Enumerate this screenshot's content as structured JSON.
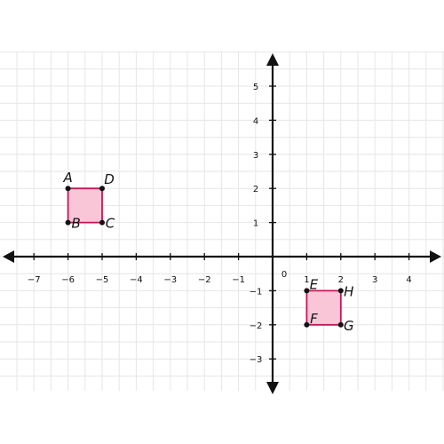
{
  "chart_data": {
    "type": "coordinate-plane",
    "title": "",
    "x_range": [
      -8,
      5
    ],
    "y_range": [
      -4,
      6
    ],
    "x_ticks": [
      -7,
      -6,
      -5,
      -4,
      -3,
      -2,
      -1,
      1,
      2,
      3,
      4
    ],
    "y_ticks": [
      -3,
      -2,
      -1,
      1,
      2,
      3,
      4,
      5
    ],
    "origin_label": "0",
    "grid_step": 0.5,
    "colors": {
      "grid": "#e6e6e6",
      "axis": "#111111",
      "square_fill": "#f9c6d7",
      "square_stroke": "#c2185b",
      "point": "#111111"
    },
    "squares": [
      {
        "name": "ABCD",
        "vertices": [
          {
            "label": "A",
            "x": -6,
            "y": 2,
            "label_pos": "above"
          },
          {
            "label": "D",
            "x": -5,
            "y": 2,
            "label_pos": "above-right"
          },
          {
            "label": "C",
            "x": -5,
            "y": 1,
            "label_pos": "right"
          },
          {
            "label": "B",
            "x": -6,
            "y": 1,
            "label_pos": "right-inside"
          }
        ]
      },
      {
        "name": "EHGF",
        "vertices": [
          {
            "label": "E",
            "x": 1,
            "y": -1,
            "label_pos": "above-inside"
          },
          {
            "label": "H",
            "x": 2,
            "y": -1,
            "label_pos": "right"
          },
          {
            "label": "G",
            "x": 2,
            "y": -2,
            "label_pos": "right"
          },
          {
            "label": "F",
            "x": 1,
            "y": -2,
            "label_pos": "above-inside"
          }
        ]
      }
    ]
  }
}
